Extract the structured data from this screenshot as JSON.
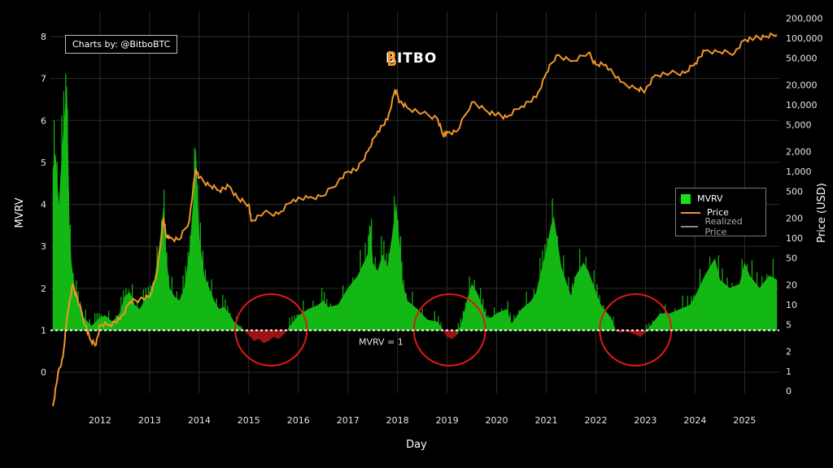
{
  "credit": "Charts by: @BitboBTC",
  "brand": "BITBO",
  "ref_label": "MVRV = 1",
  "colors": {
    "background": "#000000",
    "mvrv_fill": "#14b814",
    "mvrv_below": "#9b1414",
    "price": "#f0952a",
    "realized": "#8a8a8a",
    "circle": "#e01818",
    "grid": "#2b2b2b",
    "ref_line": "#ffffff"
  },
  "chart_data": {
    "type": "area",
    "title": "",
    "xlabel": "Day",
    "ylabel": "MVRV",
    "y2label": "Price (USD)",
    "x_ticks": [
      "2012",
      "2013",
      "2014",
      "2015",
      "2016",
      "2017",
      "2018",
      "2019",
      "2020",
      "2021",
      "2022",
      "2023",
      "2024",
      "2025"
    ],
    "y_ticks": [
      0,
      1,
      2,
      3,
      4,
      5,
      6,
      7,
      8
    ],
    "y_range": [
      -0.5,
      8.6
    ],
    "y2_ticks": [
      {
        "value": 0,
        "label": "0"
      },
      {
        "value": 1,
        "label": "1"
      },
      {
        "value": 2,
        "label": "2"
      },
      {
        "value": 5,
        "label": "5"
      },
      {
        "value": 10,
        "label": "10"
      },
      {
        "value": 20,
        "label": "20"
      },
      {
        "value": 50,
        "label": "50"
      },
      {
        "value": 100,
        "label": "100"
      },
      {
        "value": 200,
        "label": "200"
      },
      {
        "value": 500,
        "label": "500"
      },
      {
        "value": 1000,
        "label": "1,000"
      },
      {
        "value": 2000,
        "label": "2,000"
      },
      {
        "value": 5000,
        "label": "5,000"
      },
      {
        "value": 10000,
        "label": "10,000"
      },
      {
        "value": 20000,
        "label": "20,000"
      },
      {
        "value": 50000,
        "label": "50,000"
      },
      {
        "value": 100000,
        "label": "100,000"
      },
      {
        "value": 200000,
        "label": "200,000"
      }
    ],
    "y2_scale": "log",
    "legend": {
      "placement": "right",
      "items": [
        {
          "name": "MVRV",
          "kind": "area"
        },
        {
          "name": "Price",
          "kind": "line"
        },
        {
          "name": "Realized Price",
          "kind": "line"
        }
      ]
    },
    "mvrv_series": {
      "name": "MVRV",
      "x": [
        2011.05,
        2011.1,
        2011.17,
        2011.25,
        2011.33,
        2011.38,
        2011.42,
        2011.5,
        2011.58,
        2011.67,
        2011.75,
        2011.83,
        2011.92,
        2012.0,
        2012.1,
        2012.25,
        2012.4,
        2012.5,
        2012.6,
        2012.7,
        2012.8,
        2012.9,
        2013.0,
        2013.1,
        2013.2,
        2013.28,
        2013.33,
        2013.4,
        2013.5,
        2013.6,
        2013.7,
        2013.8,
        2013.88,
        2013.93,
        2014.0,
        2014.1,
        2014.2,
        2014.3,
        2014.4,
        2014.5,
        2014.6,
        2014.7,
        2014.8,
        2014.9,
        2015.0,
        2015.1,
        2015.2,
        2015.3,
        2015.4,
        2015.5,
        2015.6,
        2015.7,
        2015.8,
        2015.9,
        2016.0,
        2016.2,
        2016.4,
        2016.5,
        2016.6,
        2016.8,
        2017.0,
        2017.2,
        2017.4,
        2017.45,
        2017.5,
        2017.6,
        2017.7,
        2017.8,
        2017.9,
        2017.97,
        2018.05,
        2018.1,
        2018.2,
        2018.4,
        2018.6,
        2018.8,
        2018.9,
        2019.0,
        2019.1,
        2019.2,
        2019.3,
        2019.4,
        2019.5,
        2019.6,
        2019.7,
        2019.8,
        2019.9,
        2020.0,
        2020.2,
        2020.3,
        2020.5,
        2020.7,
        2020.8,
        2020.9,
        2021.0,
        2021.1,
        2021.15,
        2021.3,
        2021.5,
        2021.6,
        2021.75,
        2021.85,
        2022.0,
        2022.1,
        2022.3,
        2022.4,
        2022.5,
        2022.6,
        2022.7,
        2022.8,
        2022.9,
        2023.0,
        2023.1,
        2023.3,
        2023.5,
        2023.7,
        2023.9,
        2024.0,
        2024.2,
        2024.4,
        2024.5,
        2024.7,
        2024.9,
        2025.0,
        2025.1,
        2025.3,
        2025.5,
        2025.65
      ],
      "values": [
        4.8,
        5.2,
        3.9,
        5.5,
        6.8,
        3.5,
        2.6,
        1.9,
        1.6,
        1.3,
        1.2,
        1.1,
        1.2,
        1.3,
        1.35,
        1.2,
        1.4,
        1.8,
        1.9,
        1.6,
        1.5,
        1.7,
        1.9,
        2.2,
        3.0,
        3.9,
        2.8,
        2.0,
        1.8,
        1.7,
        2.0,
        2.8,
        4.0,
        5.3,
        3.2,
        2.3,
        2.0,
        1.7,
        1.5,
        1.55,
        1.4,
        1.2,
        1.1,
        1.0,
        0.9,
        0.75,
        0.8,
        0.7,
        0.75,
        0.85,
        0.8,
        0.9,
        1.05,
        1.2,
        1.35,
        1.5,
        1.6,
        1.7,
        1.55,
        1.6,
        2.0,
        2.3,
        2.8,
        3.5,
        2.6,
        2.4,
        2.8,
        2.5,
        3.3,
        4.0,
        2.9,
        2.1,
        1.7,
        1.5,
        1.25,
        1.2,
        1.05,
        0.85,
        0.8,
        0.9,
        1.2,
        1.7,
        2.1,
        1.9,
        1.6,
        1.3,
        1.3,
        1.4,
        1.5,
        1.15,
        1.5,
        1.7,
        1.9,
        2.4,
        2.9,
        3.5,
        3.7,
        2.5,
        1.8,
        2.3,
        2.6,
        2.4,
        1.9,
        1.6,
        1.3,
        1.0,
        0.95,
        0.98,
        0.95,
        0.9,
        0.85,
        0.95,
        1.1,
        1.4,
        1.4,
        1.5,
        1.6,
        1.8,
        2.3,
        2.7,
        2.2,
        2.0,
        2.1,
        2.6,
        2.3,
        2.0,
        2.3,
        2.2
      ],
      "note": "values below 1 drawn in red"
    },
    "price_series": {
      "name": "Price",
      "x": [
        2011.05,
        2011.15,
        2011.25,
        2011.35,
        2011.45,
        2011.55,
        2011.7,
        2011.8,
        2011.92,
        2012.0,
        2012.2,
        2012.4,
        2012.6,
        2012.8,
        2013.0,
        2013.15,
        2013.28,
        2013.33,
        2013.4,
        2013.6,
        2013.8,
        2013.93,
        2014.0,
        2014.2,
        2014.4,
        2014.6,
        2014.8,
        2015.0,
        2015.05,
        2015.3,
        2015.6,
        2015.9,
        2016.2,
        2016.5,
        2016.8,
        2017.0,
        2017.2,
        2017.4,
        2017.6,
        2017.8,
        2017.95,
        2018.05,
        2018.2,
        2018.5,
        2018.8,
        2018.92,
        2019.0,
        2019.2,
        2019.5,
        2019.8,
        2020.0,
        2020.2,
        2020.5,
        2020.8,
        2021.0,
        2021.2,
        2021.5,
        2021.85,
        2022.0,
        2022.2,
        2022.5,
        2022.85,
        2023.0,
        2023.2,
        2023.5,
        2023.8,
        2024.0,
        2024.2,
        2024.5,
        2024.8,
        2025.0,
        2025.2,
        2025.4,
        2025.65
      ],
      "values": [
        0.3,
        0.9,
        1.6,
        8,
        20,
        12,
        5,
        3,
        2.5,
        5,
        5,
        6,
        11,
        12,
        13,
        30,
        200,
        110,
        100,
        95,
        180,
        1100,
        800,
        620,
        520,
        600,
        380,
        320,
        180,
        240,
        230,
        380,
        400,
        430,
        700,
        1000,
        1100,
        2000,
        4000,
        6000,
        17000,
        11000,
        9000,
        7500,
        6300,
        3500,
        3800,
        4000,
        11000,
        8000,
        7200,
        6500,
        9500,
        13000,
        30000,
        55000,
        45000,
        60000,
        40000,
        40000,
        22000,
        17000,
        16500,
        28000,
        30000,
        30000,
        42000,
        65000,
        62000,
        60000,
        95000,
        100000,
        105000,
        112000
      ]
    }
  }
}
